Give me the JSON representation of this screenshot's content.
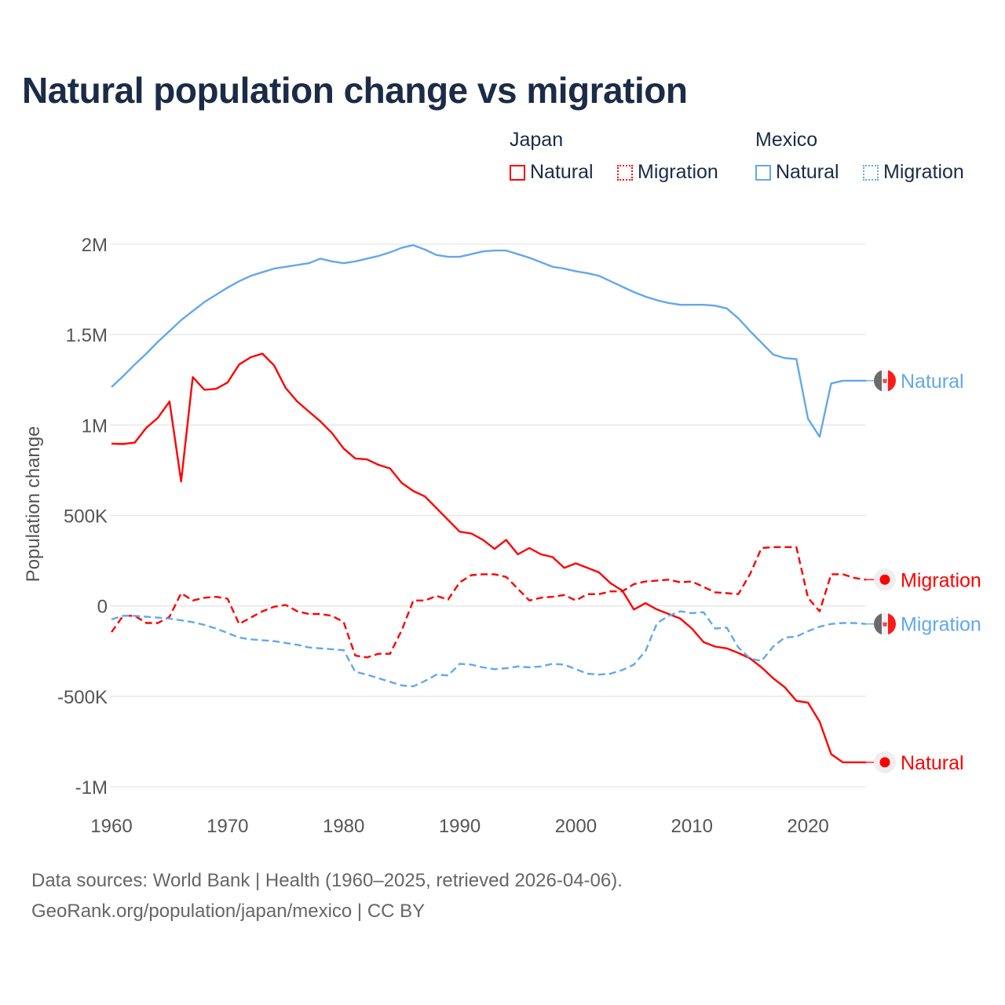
{
  "chart_data": {
    "type": "line",
    "title": "Natural population change vs migration",
    "ylabel": "Population change",
    "xlabel": "",
    "xlim": [
      1960,
      2025
    ],
    "ylim": [
      -1000000,
      2000000
    ],
    "x_ticks": [
      1960,
      1970,
      1980,
      1990,
      2000,
      2010,
      2020
    ],
    "x_tick_labels": [
      "1960",
      "1970",
      "1980",
      "1990",
      "2000",
      "2010",
      "2020"
    ],
    "y_ticks": [
      2000000,
      1500000,
      1000000,
      500000,
      0,
      -500000,
      -1000000
    ],
    "y_tick_labels": [
      "2M",
      "1.5M",
      "1M",
      "500K",
      "0",
      "-500K",
      "-1M"
    ],
    "grid": true,
    "legend_placement": "top-right",
    "legend": {
      "groups": [
        {
          "name": "Japan",
          "items": [
            "Natural",
            "Migration"
          ]
        },
        {
          "name": "Mexico",
          "items": [
            "Natural",
            "Migration"
          ]
        }
      ]
    },
    "x": [
      1960,
      1961,
      1962,
      1963,
      1964,
      1965,
      1966,
      1967,
      1968,
      1969,
      1970,
      1971,
      1972,
      1973,
      1974,
      1975,
      1976,
      1977,
      1978,
      1979,
      1980,
      1981,
      1982,
      1983,
      1984,
      1985,
      1986,
      1987,
      1988,
      1989,
      1990,
      1991,
      1992,
      1993,
      1994,
      1995,
      1996,
      1997,
      1998,
      1999,
      2000,
      2001,
      2002,
      2003,
      2004,
      2005,
      2006,
      2007,
      2008,
      2009,
      2010,
      2011,
      2012,
      2013,
      2014,
      2015,
      2016,
      2017,
      2018,
      2019,
      2020,
      2021,
      2022,
      2023,
      2024,
      2025
    ],
    "series": [
      {
        "name": "Natural",
        "country": "Japan",
        "color": "#ff0000",
        "dash": "solid",
        "end_label": "Natural",
        "flag": "japan-flag",
        "values": [
          897000,
          895000,
          903000,
          985000,
          1040000,
          1130000,
          688000,
          1265000,
          1195000,
          1200000,
          1235000,
          1335000,
          1375000,
          1395000,
          1330000,
          1205000,
          1130000,
          1075000,
          1020000,
          955000,
          870000,
          815000,
          810000,
          780000,
          760000,
          680000,
          635000,
          605000,
          540000,
          475000,
          410000,
          400000,
          365000,
          315000,
          365000,
          285000,
          320000,
          285000,
          270000,
          210000,
          235000,
          210000,
          185000,
          125000,
          85000,
          -20000,
          15000,
          -20000,
          -45000,
          -70000,
          -125000,
          -200000,
          -225000,
          -235000,
          -260000,
          -290000,
          -340000,
          -400000,
          -450000,
          -525000,
          -535000,
          -640000,
          -820000,
          -865000,
          -865000,
          -865000
        ]
      },
      {
        "name": "Migration",
        "country": "Japan",
        "color": "#ff0000",
        "dash": "dashed",
        "end_label": "Migration",
        "flag": "japan-flag",
        "values": [
          -145000,
          -55000,
          -55000,
          -95000,
          -95000,
          -60000,
          70000,
          30000,
          45000,
          50000,
          40000,
          -100000,
          -65000,
          -30000,
          -5000,
          5000,
          -30000,
          -45000,
          -45000,
          -55000,
          -90000,
          -275000,
          -285000,
          -265000,
          -265000,
          -135000,
          30000,
          30000,
          55000,
          35000,
          130000,
          170000,
          175000,
          175000,
          160000,
          95000,
          30000,
          45000,
          50000,
          60000,
          30000,
          65000,
          65000,
          80000,
          80000,
          120000,
          135000,
          140000,
          145000,
          130000,
          135000,
          105000,
          75000,
          70000,
          65000,
          175000,
          320000,
          325000,
          325000,
          325000,
          45000,
          -30000,
          175000,
          175000,
          155000,
          145000
        ]
      },
      {
        "name": "Natural",
        "country": "Mexico",
        "color": "#63a8eb",
        "dash": "solid",
        "end_label": "Natural",
        "flag": "mexico-flag",
        "values": [
          1210000,
          1270000,
          1335000,
          1395000,
          1460000,
          1520000,
          1580000,
          1630000,
          1680000,
          1720000,
          1760000,
          1795000,
          1825000,
          1845000,
          1865000,
          1875000,
          1885000,
          1895000,
          1920000,
          1905000,
          1895000,
          1905000,
          1920000,
          1935000,
          1955000,
          1980000,
          1995000,
          1970000,
          1940000,
          1930000,
          1930000,
          1945000,
          1960000,
          1965000,
          1965000,
          1945000,
          1925000,
          1900000,
          1875000,
          1865000,
          1850000,
          1840000,
          1825000,
          1795000,
          1765000,
          1735000,
          1710000,
          1690000,
          1675000,
          1665000,
          1665000,
          1665000,
          1660000,
          1645000,
          1590000,
          1520000,
          1455000,
          1390000,
          1370000,
          1365000,
          1035000,
          935000,
          1230000,
          1245000,
          1245000,
          1245000
        ]
      },
      {
        "name": "Migration",
        "country": "Mexico",
        "color": "#63a8eb",
        "dash": "dashed",
        "end_label": "Migration",
        "flag": "mexico-flag",
        "values": [
          -75000,
          -55000,
          -55000,
          -60000,
          -65000,
          -70000,
          -80000,
          -90000,
          -105000,
          -125000,
          -150000,
          -175000,
          -185000,
          -190000,
          -195000,
          -205000,
          -215000,
          -230000,
          -235000,
          -240000,
          -245000,
          -365000,
          -380000,
          -400000,
          -420000,
          -440000,
          -445000,
          -415000,
          -380000,
          -385000,
          -320000,
          -325000,
          -340000,
          -350000,
          -345000,
          -335000,
          -340000,
          -335000,
          -320000,
          -325000,
          -350000,
          -375000,
          -380000,
          -375000,
          -355000,
          -325000,
          -250000,
          -95000,
          -55000,
          -30000,
          -40000,
          -35000,
          -125000,
          -120000,
          -230000,
          -290000,
          -305000,
          -225000,
          -175000,
          -170000,
          -140000,
          -115000,
          -100000,
          -95000,
          -95000,
          -100000
        ]
      }
    ]
  },
  "legend": {
    "japan": {
      "label": "Japan",
      "natural": "Natural",
      "migration": "Migration"
    },
    "mexico": {
      "label": "Mexico",
      "natural": "Natural",
      "migration": "Migration"
    }
  },
  "footer": {
    "sources": "Data sources: World Bank | Health (1960–2025, retrieved 2026-04-06).",
    "credit": "GeoRank.org/population/japan/mexico | CC BY"
  },
  "colors": {
    "japan": "#ff0000",
    "mexico": "#63a8eb",
    "title": "#1c2b46"
  }
}
